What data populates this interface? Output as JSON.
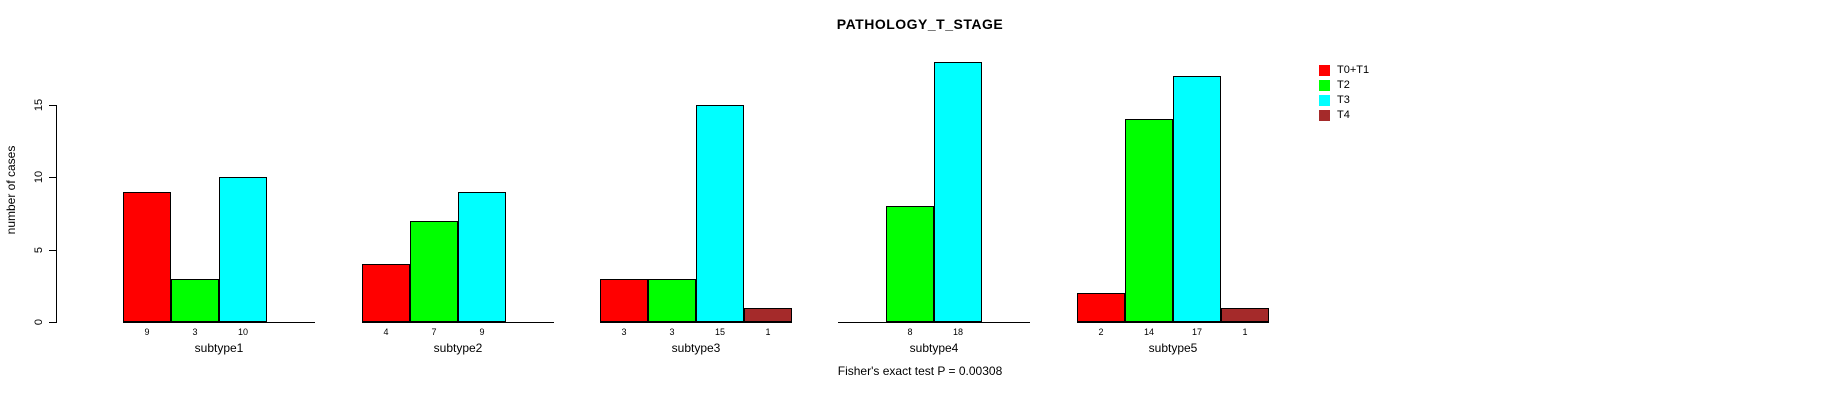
{
  "title": "PATHOLOGY_T_STAGE",
  "footer": "Fisher's exact test P = 0.00308",
  "chart_data": {
    "type": "bar",
    "title": "PATHOLOGY_T_STAGE",
    "ylabel": "number of cases",
    "xlabel": "",
    "categories": [
      "subtype1",
      "subtype2",
      "subtype3",
      "subtype4",
      "subtype5"
    ],
    "series": [
      {
        "name": "T0+T1",
        "color": "#ff0000",
        "values": [
          9,
          4,
          3,
          null,
          2
        ]
      },
      {
        "name": "T2",
        "color": "#00ff00",
        "values": [
          3,
          7,
          3,
          8,
          14
        ]
      },
      {
        "name": "T3",
        "color": "#00ffff",
        "values": [
          10,
          9,
          15,
          18,
          17
        ]
      },
      {
        "name": "T4",
        "color": "#a52a2a",
        "values": [
          null,
          null,
          1,
          null,
          1
        ]
      }
    ],
    "yticks": [
      0,
      5,
      10,
      15
    ],
    "ylim": [
      0,
      18
    ],
    "grid": false,
    "legend_position": "right",
    "bar_value_labels": true,
    "annotation": "Fisher's exact test P = 0.00308"
  }
}
